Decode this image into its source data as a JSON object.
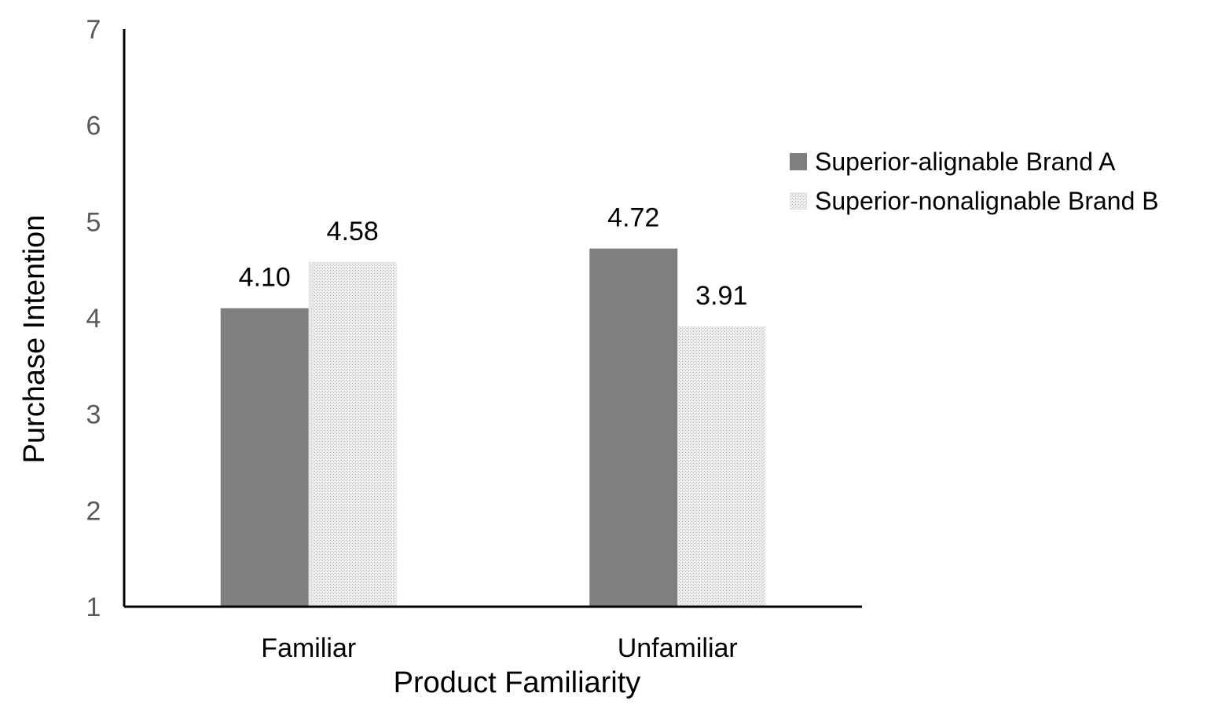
{
  "chart_data": {
    "type": "bar",
    "title": "",
    "xlabel": "Product Familiarity",
    "ylabel": "Purchase Intention",
    "categories": [
      "Familiar",
      "Unfamiliar"
    ],
    "series": [
      {
        "name": "Superior-alignable Brand A",
        "values": [
          4.1,
          4.72
        ],
        "labels": [
          "4.10",
          "4.72"
        ],
        "color": "#7f7f7f",
        "pattern": "solid"
      },
      {
        "name": "Superior-nonalignable Brand B",
        "values": [
          4.58,
          3.91
        ],
        "labels": [
          "4.58",
          "3.91"
        ],
        "color": "#e6e6e6",
        "pattern": "dotted"
      }
    ],
    "ylim": [
      1,
      7
    ],
    "yticks": [
      "1",
      "2",
      "3",
      "4",
      "5",
      "6",
      "7"
    ],
    "grid": false,
    "legend_position": "right"
  }
}
